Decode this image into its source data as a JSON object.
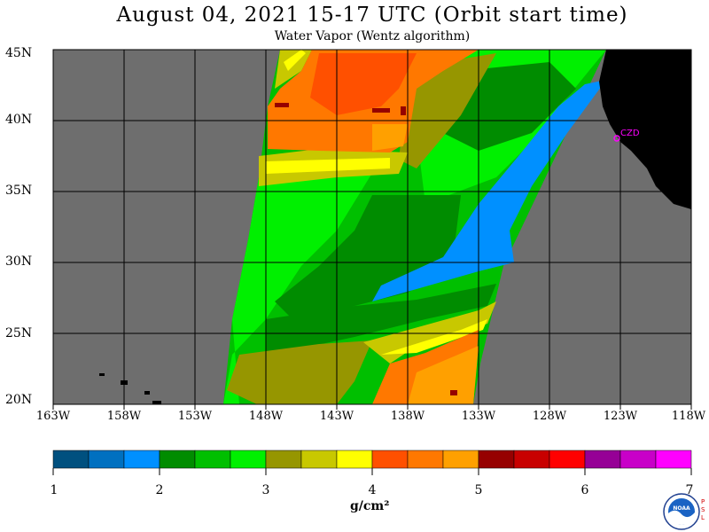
{
  "title": "August 04, 2021  15-17 UTC  (Orbit start time)",
  "subtitle": "Water Vapor (Wentz algorithm)",
  "lat_labels": [
    "45N",
    "40N",
    "35N",
    "30N",
    "25N",
    "20N"
  ],
  "lon_labels": [
    "163W",
    "158W",
    "153W",
    "148W",
    "143W",
    "138W",
    "133W",
    "128W",
    "123W",
    "118W"
  ],
  "colorbar": {
    "ticks": [
      "1",
      "2",
      "3",
      "4",
      "5",
      "6",
      "7"
    ],
    "units": "g/cm²",
    "colors": [
      "#00507f",
      "#0070c0",
      "#0090ff",
      "#008c00",
      "#00bf00",
      "#00f000",
      "#969600",
      "#c8c800",
      "#ffff00",
      "#ff5000",
      "#ff7800",
      "#ffa000",
      "#960000",
      "#c80000",
      "#ff0000",
      "#960096",
      "#c800c8",
      "#ff00ff"
    ]
  },
  "station_label": "CZD",
  "logo_text": "NOAA",
  "psl_letters": [
    "P",
    "S",
    "L"
  ],
  "colors": {
    "no_data": "#6e6e6e",
    "land": "#000000",
    "grid": "#000000",
    "station": "#ff00ff"
  }
}
